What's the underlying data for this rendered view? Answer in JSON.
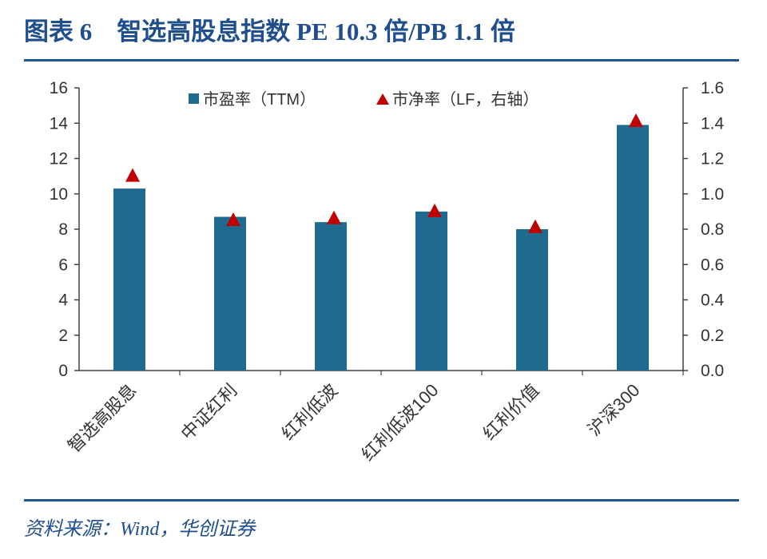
{
  "header": {
    "title": "图表 6    智选高股息指数 PE 10.3 倍/PB 1.1 倍"
  },
  "footer": {
    "source": "资料来源：Wind，华创证券"
  },
  "colors": {
    "bar": "#1f6a8f",
    "marker": "#c00000",
    "rule": "#1f5592",
    "title": "#1f4e8c"
  },
  "chart_data": {
    "type": "bar",
    "categories": [
      "智选高股息",
      "中证红利",
      "红利低波",
      "红利低波100",
      "红利价值",
      "沪深300"
    ],
    "series": [
      {
        "name": "市盈率（TTM）",
        "kind": "bar",
        "axis": "left",
        "values": [
          10.3,
          8.7,
          8.4,
          9.0,
          8.0,
          13.9
        ]
      },
      {
        "name": "市净率（LF，右轴）",
        "kind": "marker",
        "axis": "right",
        "values": [
          1.1,
          0.85,
          0.86,
          0.9,
          0.81,
          1.41
        ]
      }
    ],
    "ylim_left": [
      0,
      16
    ],
    "ylim_right": [
      0,
      1.6
    ],
    "yticks_left": [
      "0",
      "2",
      "4",
      "6",
      "8",
      "10",
      "12",
      "14",
      "16"
    ],
    "yticks_right": [
      "0.0",
      "0.2",
      "0.4",
      "0.6",
      "0.8",
      "1.0",
      "1.2",
      "1.4",
      "1.6"
    ],
    "legend": {
      "bar_label": "市盈率（TTM）",
      "marker_label": "市净率（LF，右轴）",
      "position": "top"
    }
  }
}
